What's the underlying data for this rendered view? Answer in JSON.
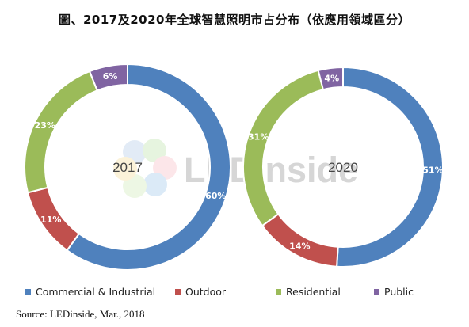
{
  "title": "圖、2017及2020年全球智慧照明市占分布（依應用領域區分）",
  "source": "Source: LEDinside, Mar., 2018",
  "watermark": {
    "text": "LEDinside",
    "icon": "flower-logo-icon"
  },
  "colors": {
    "Commercial & Industrial": "#4f81bd",
    "Outdoor": "#c0504d",
    "Residential": "#9bbb59",
    "Public": "#8064a2"
  },
  "legend": [
    {
      "label": "Commercial & Industrial",
      "color": "#4f81bd"
    },
    {
      "label": "Outdoor",
      "color": "#c0504d"
    },
    {
      "label": "Residential",
      "color": "#9bbb59"
    },
    {
      "label": "Public",
      "color": "#8064a2"
    }
  ],
  "chart_data": [
    {
      "type": "pie",
      "variant": "donut",
      "center_label": "2017",
      "categories": [
        "Commercial & Industrial",
        "Outdoor",
        "Residential",
        "Public"
      ],
      "values": [
        60,
        11,
        23,
        6
      ],
      "labels": [
        "60%",
        "11%",
        "23%",
        "6%"
      ]
    },
    {
      "type": "pie",
      "variant": "donut",
      "center_label": "2020",
      "categories": [
        "Commercial & Industrial",
        "Outdoor",
        "Residential",
        "Public"
      ],
      "values": [
        51,
        14,
        31,
        4
      ],
      "labels": [
        "51%",
        "14%",
        "31%",
        "4%"
      ]
    }
  ]
}
